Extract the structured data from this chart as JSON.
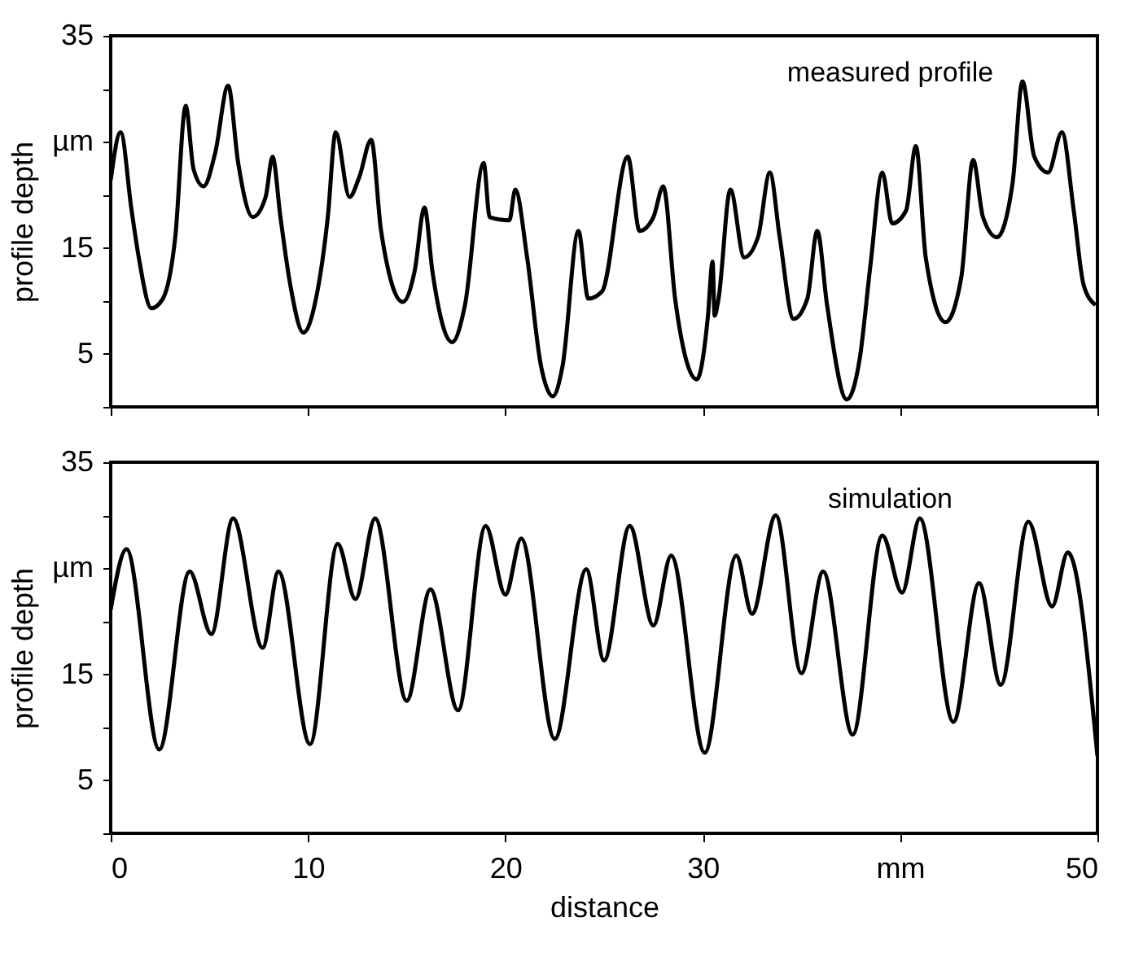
{
  "chart_data": [
    {
      "type": "line",
      "ylabel": "profile depth",
      "xlim": [
        0,
        50
      ],
      "ylim": [
        0,
        35
      ],
      "xticks": [
        0,
        10,
        20,
        30,
        40,
        50
      ],
      "yticks": [
        {
          "value": 0,
          "label": null
        },
        5,
        {
          "value": 10,
          "label": null
        },
        15,
        {
          "value": 20,
          "label": null
        },
        {
          "value": 25,
          "label": "µm"
        },
        {
          "value": 30,
          "label": null
        },
        35
      ],
      "tick_labels": "y",
      "grid": false,
      "series": [
        {
          "name": "measured profile",
          "color": "#000000",
          "x": [
            0,
            0.5,
            1.06,
            1.43,
            2.06,
            2.64,
            3.27,
            3.8,
            4.2,
            4.7,
            5.3,
            5.95,
            6.46,
            7.2,
            7.85,
            8.2,
            8.6,
            9.1,
            9.76,
            10.4,
            11.0,
            11.4,
            12.1,
            12.6,
            13.2,
            13.7,
            14.8,
            15.4,
            15.9,
            16.3,
            17.3,
            17.95,
            18.9,
            19.2,
            20.2,
            20.5,
            21.1,
            21.8,
            22.4,
            22.9,
            23.7,
            24.2,
            24.9,
            26.2,
            26.8,
            27.5,
            28.0,
            28.6,
            29.7,
            30.25,
            30.5,
            30.6,
            30.8,
            31.4,
            32.1,
            32.8,
            33.4,
            33.9,
            34.6,
            35.3,
            35.8,
            36.3,
            37.3,
            37.95,
            38.5,
            39.1,
            39.6,
            40.3,
            40.8,
            41.3,
            42.3,
            43.1,
            43.7,
            44.2,
            44.9,
            45.7,
            46.2,
            46.8,
            47.5,
            48.2,
            48.8,
            49.3,
            49.9
          ],
          "values": [
            21.4,
            25.9,
            18.5,
            14.0,
            9.3,
            10.2,
            16.0,
            28.4,
            22.4,
            20.8,
            24.0,
            30.3,
            23.0,
            17.9,
            19.8,
            23.6,
            17.9,
            11.5,
            7.0,
            10.2,
            17.9,
            25.9,
            19.8,
            21.7,
            25.2,
            16.6,
            9.9,
            12.8,
            18.8,
            12.8,
            6.1,
            9.6,
            23.0,
            17.9,
            17.6,
            20.5,
            14.1,
            3.9,
            1.0,
            3.9,
            16.6,
            10.2,
            10.9,
            23.6,
            16.6,
            17.9,
            20.8,
            10.2,
            2.6,
            8.3,
            13.7,
            8.6,
            10.2,
            20.5,
            14.1,
            16.0,
            22.1,
            16.0,
            8.3,
            10.2,
            16.6,
            9.6,
            0.7,
            4.5,
            13.4,
            22.1,
            17.3,
            18.5,
            24.6,
            14.1,
            8.0,
            12.2,
            23.3,
            17.9,
            16.0,
            21.1,
            30.7,
            23.6,
            22.1,
            25.9,
            18.5,
            11.5,
            9.6
          ]
        }
      ]
    },
    {
      "type": "line",
      "xlabel": "distance",
      "ylabel": "profile depth",
      "xlim": [
        0,
        50
      ],
      "ylim": [
        0,
        35
      ],
      "xticks": [
        0,
        10,
        20,
        30,
        {
          "value": 40,
          "label": "mm"
        },
        50
      ],
      "yticks": [
        {
          "value": 0,
          "label": null
        },
        5,
        {
          "value": 10,
          "label": null
        },
        15,
        {
          "value": 20,
          "label": null
        },
        {
          "value": 25,
          "label": "µm"
        },
        {
          "value": 30,
          "label": null
        },
        35
      ],
      "grid": false,
      "series": [
        {
          "name": "simulation",
          "color": "#000000",
          "x": [
            0,
            0.8,
            2.46,
            4.0,
            5.1,
            6.2,
            7.7,
            8.5,
            10.1,
            11.5,
            12.4,
            13.4,
            15.0,
            16.2,
            17.6,
            19.0,
            20.0,
            20.8,
            22.5,
            24.1,
            25.0,
            26.3,
            27.5,
            28.4,
            30.1,
            31.7,
            32.5,
            33.7,
            35.0,
            36.1,
            37.6,
            39.1,
            40.1,
            41.0,
            42.7,
            44.0,
            45.1,
            46.5,
            47.7,
            48.5,
            50
          ],
          "values": [
            21.1,
            26.8,
            7.9,
            24.7,
            18.8,
            29.7,
            17.5,
            24.7,
            8.4,
            27.3,
            22.1,
            29.7,
            12.5,
            23.0,
            11.6,
            29.0,
            22.5,
            27.8,
            8.9,
            24.9,
            16.3,
            29.0,
            19.6,
            26.2,
            7.6,
            26.2,
            20.7,
            30.0,
            15.1,
            24.7,
            9.3,
            28.1,
            22.7,
            29.7,
            10.5,
            23.6,
            14.0,
            29.4,
            21.4,
            26.5,
            7.3
          ]
        }
      ]
    }
  ]
}
